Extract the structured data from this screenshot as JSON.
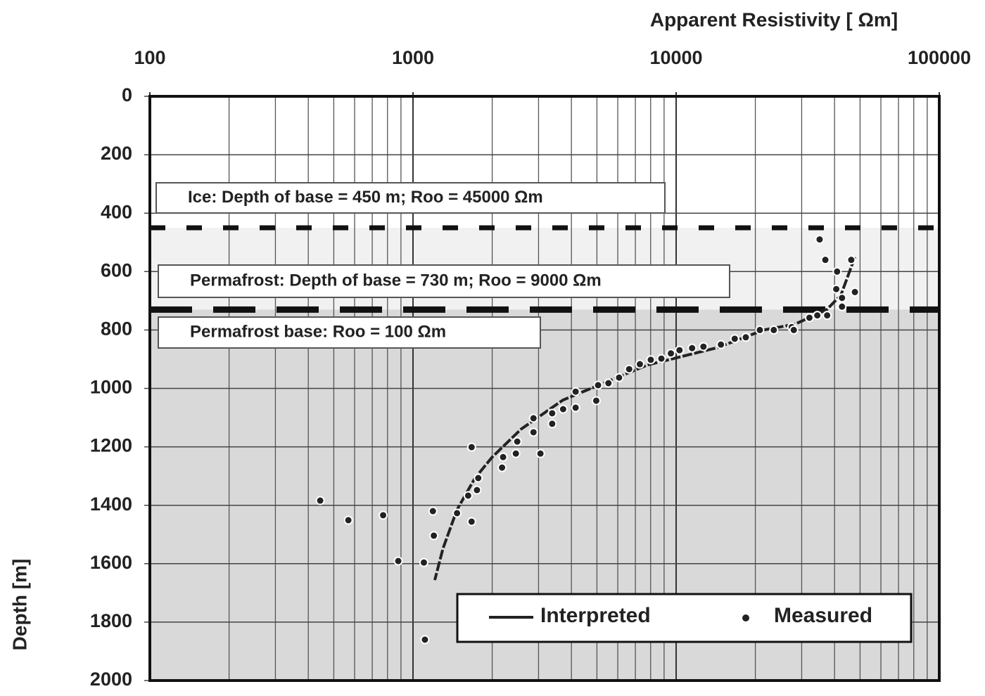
{
  "chart_data": {
    "type": "scatter",
    "x_label": "Apparent Resistivity [ Ωm]",
    "y_label": "Depth [m]",
    "xscale": "log",
    "xlim": [
      100,
      100000
    ],
    "xticks": [
      100,
      1000,
      10000,
      100000
    ],
    "xminorticks": [
      200,
      300,
      400,
      500,
      600,
      700,
      800,
      900,
      2000,
      3000,
      4000,
      5000,
      6000,
      7000,
      8000,
      9000,
      20000,
      30000,
      40000,
      50000,
      60000,
      70000,
      80000,
      90000
    ],
    "ylim": [
      0,
      2000
    ],
    "y_inverted": true,
    "yticks": [
      0,
      200,
      400,
      600,
      800,
      1000,
      1200,
      1400,
      1600,
      1800,
      2000
    ],
    "grid": true,
    "hlines": [
      450,
      730
    ],
    "annotations": [
      "Ice: Depth of base = 450 m; Roo =  45000 Ωm",
      "Permafrost: Depth of base = 730 m; Roo =  9000 Ωm",
      "Permafrost base: Roo = 100 Ωm"
    ],
    "legend": "lower right",
    "series": [
      {
        "name": "Interpreted",
        "kind": "line",
        "color": "#222222",
        "x": [
          47800,
          42300,
          37400,
          28300,
          21500,
          14400,
          7770,
          5370,
          3710,
          2570,
          2000,
          1720,
          1470,
          1300,
          1210
        ],
        "values": [
          550,
          680,
          730,
          780,
          800,
          860,
          920,
          980,
          1040,
          1140,
          1235,
          1307,
          1415,
          1548,
          1656
        ]
      },
      {
        "name": "Measured",
        "kind": "points",
        "color": "#222222",
        "x": [
          35100,
          36900,
          40900,
          46300,
          47800,
          40600,
          42700,
          42700,
          37500,
          34400,
          32100,
          27500,
          28000,
          23500,
          20800,
          18400,
          16700,
          14800,
          12700,
          11500,
          10300,
          9550,
          8790,
          8010,
          7280,
          6630,
          6070,
          5530,
          5050,
          4970,
          4150,
          4150,
          3720,
          3380,
          3380,
          2870,
          2870,
          2490,
          2460,
          2200,
          2180,
          3050,
          1770,
          1750,
          1620,
          1470,
          1670,
          1670,
          1190,
          1200,
          1100,
          1110,
          879,
          770,
          568,
          444
        ],
        "values": [
          490,
          560,
          600,
          560,
          670,
          660,
          690,
          720,
          750,
          750,
          758,
          790,
          800,
          800,
          800,
          825,
          830,
          850,
          857,
          862,
          869,
          880,
          898,
          902,
          917,
          934,
          963,
          982,
          989,
          1042,
          1011,
          1066,
          1071,
          1085,
          1121,
          1102,
          1150,
          1182,
          1223,
          1235,
          1271,
          1223,
          1307,
          1348,
          1367,
          1427,
          1201,
          1456,
          1420,
          1504,
          1596,
          1860,
          1591,
          1434,
          1451,
          1384
        ]
      }
    ]
  }
}
